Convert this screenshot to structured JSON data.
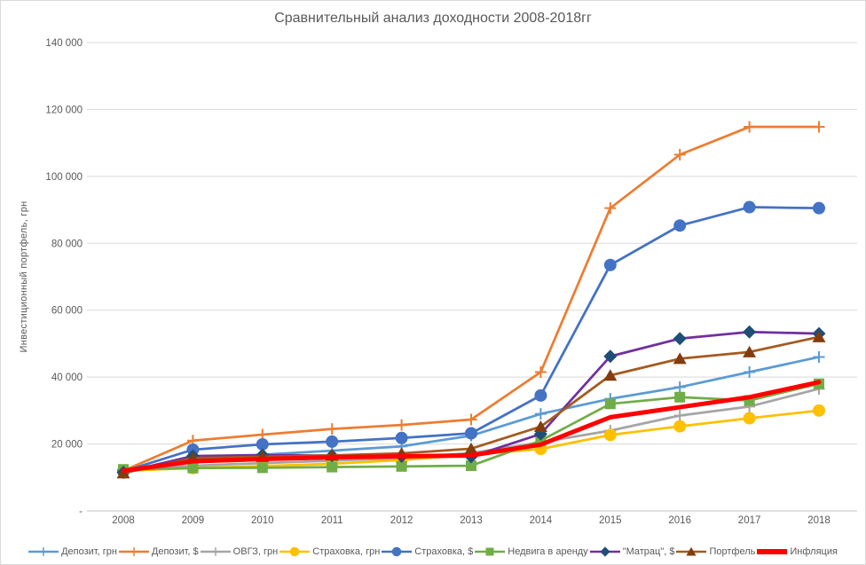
{
  "title": "Сравнительный анализ доходности 2008-2018гг",
  "chart_data": {
    "type": "line",
    "title": "Сравнительный анализ доходности 2008-2018гг",
    "xlabel": "",
    "ylabel": "Инвестиционный  портфель, грн",
    "x": [
      2008,
      2009,
      2010,
      2011,
      2012,
      2013,
      2014,
      2015,
      2016,
      2017,
      2018
    ],
    "ylim": [
      0,
      140000
    ],
    "ytick_step": 20000,
    "ytick_labels": [
      "-",
      "20 000",
      "40 000",
      "60 000",
      "80 000",
      "100 000",
      "120 000",
      "140 000"
    ],
    "grid": true,
    "legend_position": "bottom",
    "colors": {
      "grid": "#d9d9d9",
      "axis": "#bfbfbf",
      "text": "#595959",
      "border": "#d9d9d9"
    },
    "series": [
      {
        "name": "Депозит, грн",
        "color": "#5B9BD5",
        "marker": "plus",
        "marker_color": "#5B9BD5",
        "width": 2.75,
        "values": [
          12000,
          15000,
          16800,
          18000,
          19300,
          22500,
          29000,
          33500,
          37000,
          41500,
          46000
        ]
      },
      {
        "name": "Депозит, $",
        "color": "#ED7D31",
        "marker": "plus",
        "marker_color": "#ED7D31",
        "width": 2.75,
        "values": [
          12000,
          21000,
          22800,
          24500,
          25700,
          27300,
          41500,
          90500,
          106500,
          114800,
          114800
        ]
      },
      {
        "name": "ОВГЗ, грн",
        "color": "#A5A5A5",
        "marker": "plus",
        "marker_color": "#A5A5A5",
        "width": 2.75,
        "values": [
          12000,
          13500,
          14300,
          15000,
          15800,
          17300,
          20500,
          24000,
          28500,
          31200,
          36500
        ]
      },
      {
        "name": "Страховка, грн",
        "color": "#FFC000",
        "marker": "circle",
        "marker_color": "#FFC000",
        "width": 2.75,
        "values": [
          12000,
          12800,
          13400,
          14100,
          15200,
          16800,
          18500,
          22700,
          25300,
          27700,
          30000
        ]
      },
      {
        "name": "Страховка, $",
        "color": "#4472C4",
        "marker": "circle",
        "marker_color": "#4472C4",
        "width": 2.75,
        "values": [
          11800,
          18300,
          19900,
          20700,
          21800,
          23200,
          34500,
          73500,
          85300,
          90800,
          90500
        ]
      },
      {
        "name": "Недвига в аренду",
        "color": "#70AD47",
        "marker": "square",
        "marker_color": "#70AD47",
        "width": 2.75,
        "values": [
          12400,
          12800,
          12900,
          13100,
          13300,
          13500,
          21000,
          32000,
          34000,
          33000,
          38000
        ]
      },
      {
        "name": "\"Матрац\", $",
        "color": "#7030A0",
        "marker": "diamond",
        "marker_color": "#1F4E79",
        "width": 2.75,
        "values": [
          11500,
          16400,
          16700,
          16500,
          16300,
          16200,
          23000,
          46200,
          51500,
          53500,
          53000
        ]
      },
      {
        "name": "Портфель",
        "color": "#A55A1E",
        "marker": "triangle",
        "marker_color": "#843C0C",
        "width": 2.75,
        "values": [
          11300,
          15800,
          16200,
          16600,
          17200,
          18600,
          25200,
          40500,
          45500,
          47500,
          52000
        ]
      },
      {
        "name": "Инфляция",
        "color": "#FF0000",
        "marker": "none",
        "marker_color": "#FF0000",
        "width": 5,
        "values": [
          12000,
          14800,
          15500,
          16000,
          16300,
          16600,
          19800,
          28000,
          31000,
          34000,
          38500
        ]
      }
    ]
  }
}
